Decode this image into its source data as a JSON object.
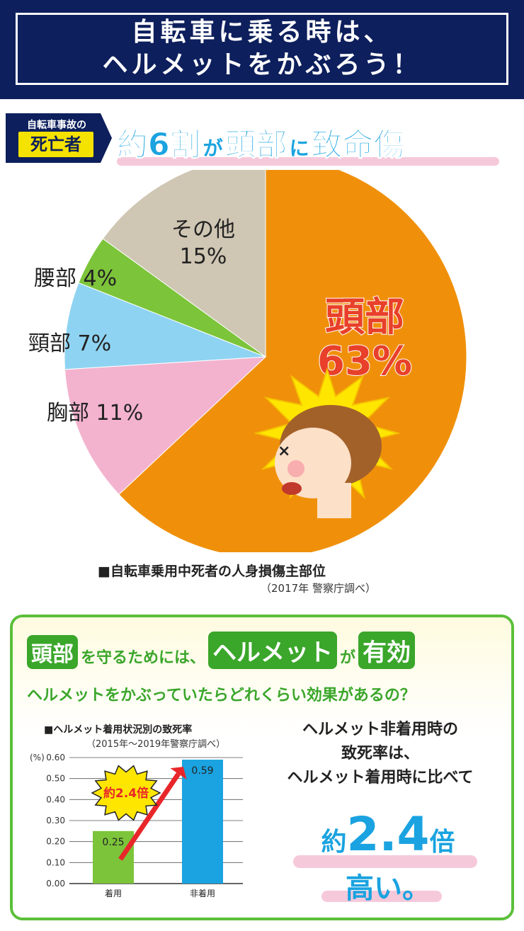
{
  "banner": {
    "line1": "自転車に乗る時は、",
    "line2": "ヘルメットをかぶろう！"
  },
  "section1": {
    "tag_line1": "自転車事故の",
    "tag_line2": "死亡者",
    "headline_a": "約6割",
    "headline_b": "が",
    "headline_c": "頭部",
    "headline_d": "に",
    "headline_e": "致命傷"
  },
  "pie_labels": {
    "head_name": "頭部",
    "head_pct": "63%",
    "other": "その他",
    "other_pct": "15%",
    "waist": "腰部 4%",
    "neck": "頸部 7%",
    "chest": "胸部 11%"
  },
  "source": {
    "title": "■自転車乗用中死者の人身損傷主部位",
    "note": "（2017年 警察庁調べ）"
  },
  "section2": {
    "heading_a": "頭部",
    "heading_b": "を守るためには、",
    "heading_c": "ヘルメット",
    "heading_d": "が",
    "heading_e": "有効",
    "question": "ヘルメットをかぶっていたらどれくらい効果があるの？",
    "bar_title": "■ヘルメット着用状況別の致死率",
    "bar_sub": "（2015年～2019年警察庁調べ）",
    "starburst": "約2.4倍",
    "right_line1": "ヘルメット非着用時の",
    "right_line2": "致死率は、",
    "right_line3": "ヘルメット着用時に比べて",
    "ratio_a": "約",
    "ratio_b": "2.4",
    "ratio_c": "倍",
    "takai": "高い。"
  },
  "chart_data": [
    {
      "type": "pie",
      "title": "■自転車乗用中死者の人身損傷主部位",
      "categories": [
        "頭部",
        "胸部",
        "頸部",
        "腰部",
        "その他"
      ],
      "values": [
        63,
        11,
        7,
        4,
        15
      ],
      "colors": [
        "#f0900a",
        "#f3b3cf",
        "#8fd3f2",
        "#7cc43a",
        "#cfc6b3"
      ]
    },
    {
      "type": "bar",
      "title": "■ヘルメット着用状況別の致死率",
      "categories": [
        "着用",
        "非着用"
      ],
      "values": [
        0.25,
        0.59
      ],
      "value_labels": [
        "0.25",
        "0.59"
      ],
      "ylabel": "(%)",
      "ylim": [
        0,
        0.6
      ],
      "yticks": [
        "0.00",
        "0.10",
        "0.20",
        "0.30",
        "0.40",
        "0.50",
        "0.60"
      ],
      "colors": [
        "#7cc43a",
        "#1aa3e0"
      ],
      "grid": true
    }
  ],
  "colors": {
    "banner": "#0d1f5c",
    "accent_blue": "#1aa3e0",
    "accent_green": "#3aa62a",
    "accent_red": "#e8402a",
    "highlight_pink": "#f6c9da"
  }
}
